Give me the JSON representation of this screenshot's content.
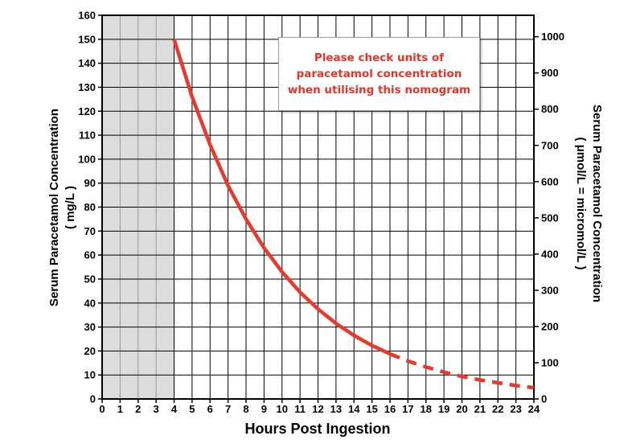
{
  "chart_data": {
    "type": "line",
    "xlabel": "Hours Post Ingestion",
    "ylabel_left": "Serum Paracetamol Concentration",
    "ylabel_left_unit": "( mg/L )",
    "ylabel_right": "Serum Paracetamol Concentration",
    "ylabel_right_unit": "( μmol/L = micromol/L )",
    "xlim": [
      0,
      24
    ],
    "ylim_left": [
      0,
      160
    ],
    "ylim_right": [
      0,
      1000
    ],
    "x_ticks": [
      0,
      1,
      2,
      3,
      4,
      5,
      6,
      7,
      8,
      9,
      10,
      11,
      12,
      13,
      14,
      15,
      16,
      17,
      18,
      19,
      20,
      21,
      22,
      23,
      24
    ],
    "y_ticks_left": [
      0,
      10,
      20,
      30,
      40,
      50,
      60,
      70,
      80,
      90,
      100,
      110,
      120,
      130,
      140,
      150,
      160
    ],
    "y_ticks_right": [
      0,
      100,
      200,
      300,
      400,
      500,
      600,
      700,
      800,
      900,
      1000
    ],
    "right_axis_factor": 6.62,
    "shaded_region_x": [
      0,
      4
    ],
    "grid": true,
    "colors": {
      "line": "#e8392b",
      "shade": "#dcdcdc",
      "grid": "#000000",
      "shade_grid": "#9a9a9a",
      "note_text": "#e5352a"
    },
    "series": [
      {
        "style": "solid",
        "x": [
          4,
          5,
          6,
          7,
          8,
          9,
          10,
          11,
          12,
          13,
          14,
          15,
          16
        ],
        "y": [
          150,
          126,
          106,
          89,
          75,
          63,
          53,
          44.5,
          37.5,
          31.5,
          26.5,
          22.3,
          18.8
        ]
      },
      {
        "style": "dashed",
        "x": [
          16,
          17,
          18,
          19,
          20,
          21,
          22,
          23,
          24
        ],
        "y": [
          18.8,
          15.8,
          13.3,
          11.2,
          9.4,
          7.9,
          6.7,
          5.6,
          4.7
        ]
      }
    ],
    "annotation": "Please check units of\nparacetamol concentration\nwhen utilising this nomogram"
  }
}
